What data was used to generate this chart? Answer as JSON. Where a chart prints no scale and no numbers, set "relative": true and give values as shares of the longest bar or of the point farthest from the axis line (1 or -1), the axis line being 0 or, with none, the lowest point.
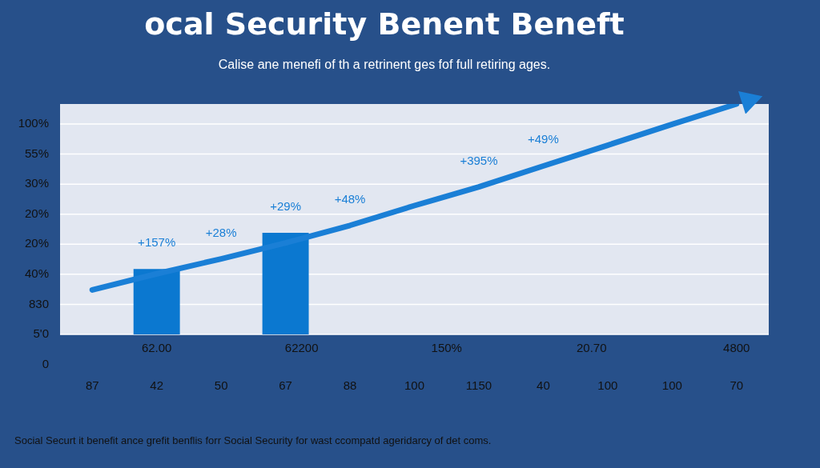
{
  "chart_data": {
    "type": "bar",
    "title": "ocal Security Benent Beneft",
    "subtitle": "Calise ane menefi of th a retrinent ges fof full retiring ages.",
    "categories": [
      "87",
      "42",
      "50",
      "67",
      "88",
      "100",
      "1150",
      "40",
      "100",
      "100",
      "70"
    ],
    "relative": true,
    "series": [
      {
        "color": "#0b78d0",
        "values": [
          null,
          0.284,
          null,
          0.441,
          null,
          null,
          null,
          null,
          null,
          null,
          null
        ]
      },
      {
        "type": "line",
        "color": "#1a7fd6",
        "values": [
          0.193,
          0.263,
          0.328,
          0.397,
          0.473,
          0.559,
          0.64,
          0.731,
          0.821,
          0.912,
          1
        ]
      }
    ],
    "grid": "y",
    "legend": false,
    "marker": "none",
    "annotations": [
      {
        "text": "+157%",
        "x": "42",
        "y": 0.284
      },
      {
        "text": "+28%",
        "x": "50",
        "y": 0.328
      },
      {
        "text": "+29%",
        "x": "67",
        "y": 0.441
      },
      {
        "text": "+48%",
        "x": "88",
        "y": 0.473
      },
      {
        "text": "+395%",
        "x": "1150",
        "y": 0.64
      },
      {
        "text": "+49%",
        "x": "40",
        "y": 0.731
      },
      "100%",
      "55%",
      "30%",
      "20%",
      "20%",
      "40%",
      "830",
      "5'0",
      "0",
      "62.00",
      "62200",
      "150%",
      "20.70",
      "4800",
      "Social Securt it benefit ance grefit benflis forr Social Security for wast ccompatd ageridarcy of det coms."
    ]
  }
}
